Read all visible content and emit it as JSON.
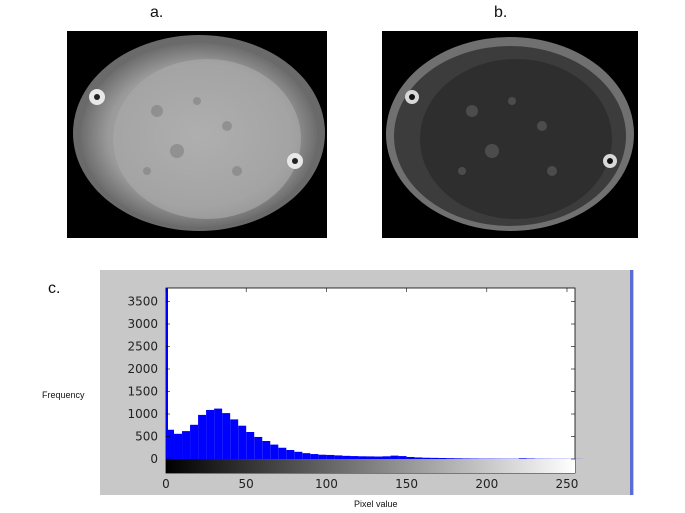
{
  "panels": {
    "a_label": "a.",
    "b_label": "b.",
    "c_label": "c."
  },
  "chart_data": {
    "type": "bar",
    "title": "",
    "xlabel": "Pixel value",
    "ylabel": "Frequency",
    "xlim": [
      0,
      255
    ],
    "ylim": [
      0,
      3800
    ],
    "xticks": [
      0,
      50,
      100,
      150,
      200,
      250
    ],
    "yticks": [
      0,
      500,
      1000,
      1500,
      2000,
      2500,
      3000,
      3500
    ],
    "grid": false,
    "bar_color": "#0000ff",
    "x": [
      0,
      5,
      10,
      15,
      20,
      25,
      30,
      35,
      40,
      45,
      50,
      55,
      60,
      65,
      70,
      75,
      80,
      85,
      90,
      95,
      100,
      105,
      110,
      115,
      120,
      125,
      130,
      135,
      140,
      145,
      150,
      155,
      160,
      165,
      170,
      175,
      180,
      185,
      190,
      195,
      200,
      205,
      210,
      215,
      220,
      225,
      230,
      235,
      240,
      245,
      250,
      255
    ],
    "values": [
      650,
      560,
      620,
      760,
      980,
      1090,
      1120,
      1020,
      880,
      740,
      600,
      490,
      400,
      320,
      250,
      200,
      160,
      130,
      110,
      95,
      90,
      80,
      70,
      65,
      60,
      58,
      55,
      60,
      75,
      65,
      45,
      35,
      28,
      25,
      22,
      18,
      15,
      12,
      10,
      8,
      8,
      7,
      6,
      6,
      15,
      10,
      6,
      5,
      4,
      4,
      3,
      2
    ],
    "colorbar": {
      "from": "#000000",
      "to": "#ffffff"
    }
  }
}
